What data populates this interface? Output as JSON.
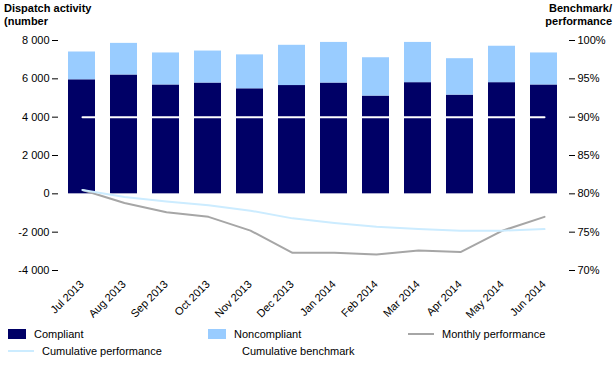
{
  "chart_data": {
    "type": "bar",
    "stacked": true,
    "grid": false,
    "legend": "bottom",
    "y_label": "Dispatch activity (number",
    "y2_label": "Benchmark/ performance",
    "categories": [
      "Jul 2013",
      "Aug 2013",
      "Sep 2013",
      "Oct 2013",
      "Nov 2013",
      "Dec 2013",
      "Jan 2014",
      "Feb 2014",
      "Mar 2014",
      "Apr 2014",
      "May 2014",
      "Jun 2014"
    ],
    "series": [
      {
        "name": "Compliant",
        "type": "bar",
        "color": "#000066",
        "values": [
          5950,
          6200,
          5680,
          5780,
          5480,
          5650,
          5780,
          5100,
          5800,
          5150,
          5800,
          5680
        ]
      },
      {
        "name": "Noncompliant",
        "type": "bar",
        "color": "#99ccff",
        "values": [
          1450,
          1650,
          1670,
          1670,
          1770,
          2100,
          2120,
          2000,
          2100,
          1900,
          1900,
          1670
        ]
      },
      {
        "name": "Monthly performance",
        "type": "line",
        "axis": "y2",
        "color": "#a6a6a6",
        "values": [
          80.5,
          78.8,
          77.6,
          77.0,
          75.2,
          72.3,
          72.3,
          72.1,
          72.6,
          72.4,
          75.2,
          77.0
        ]
      },
      {
        "name": "Cumulative performance",
        "type": "line",
        "axis": "y2",
        "color": "#ccecff",
        "values": [
          80.5,
          79.6,
          79.0,
          78.5,
          77.8,
          76.8,
          76.2,
          75.7,
          75.4,
          75.2,
          75.2,
          75.4
        ]
      },
      {
        "name": "Cumulative benchmark",
        "type": "line",
        "axis": "y2",
        "color": "#ffffff",
        "values": [
          90,
          90,
          90,
          90,
          90,
          90,
          90,
          90,
          90,
          90,
          90,
          90
        ]
      }
    ],
    "ylim": [
      -4000,
      8000
    ],
    "yticks": [
      {
        "value": -4000,
        "label": "-4 000"
      },
      {
        "value": -2000,
        "label": "-2 000"
      },
      0,
      {
        "value": 2000,
        "label": "2 000"
      },
      {
        "value": 4000,
        "label": "4 000"
      },
      {
        "value": 6000,
        "label": "6 000"
      },
      {
        "value": 8000,
        "label": "8 000"
      }
    ],
    "y2lim": [
      70,
      100
    ],
    "y2ticks": [
      {
        "value": 70,
        "label": "70%"
      },
      {
        "value": 75,
        "label": "75%"
      },
      {
        "value": 80,
        "label": "80%"
      },
      {
        "value": 85,
        "label": "85%"
      },
      {
        "value": 90,
        "label": "90%"
      },
      {
        "value": 95,
        "label": "95%"
      },
      {
        "value": 100,
        "label": "100%"
      }
    ]
  }
}
